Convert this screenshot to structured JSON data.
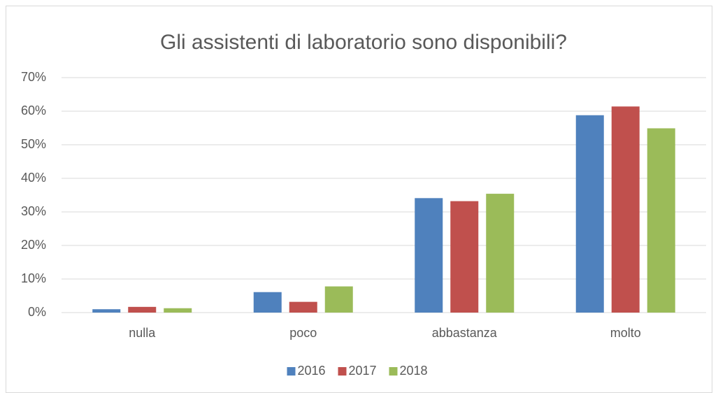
{
  "chart_data": {
    "type": "bar",
    "title": "Gli assistenti di laboratorio sono disponibili?",
    "categories": [
      "nulla",
      "poco",
      "abbastanza",
      "molto"
    ],
    "series": [
      {
        "name": "2016",
        "color": "#4f81bd",
        "values": [
          1.0,
          6.1,
          34.1,
          58.8
        ]
      },
      {
        "name": "2017",
        "color": "#c0504d",
        "values": [
          1.7,
          3.2,
          33.2,
          61.4
        ]
      },
      {
        "name": "2018",
        "color": "#9bbb59",
        "values": [
          1.3,
          7.8,
          35.4,
          54.9
        ]
      }
    ],
    "ylim": [
      0,
      70
    ],
    "yticks": [
      {
        "value": 0,
        "label": "0%"
      },
      {
        "value": 10,
        "label": "10%"
      },
      {
        "value": 20,
        "label": "20%"
      },
      {
        "value": 30,
        "label": "30%"
      },
      {
        "value": 40,
        "label": "40%"
      },
      {
        "value": 50,
        "label": "50%"
      },
      {
        "value": 60,
        "label": "60%"
      },
      {
        "value": 70,
        "label": "70%"
      }
    ],
    "grid": true,
    "legend": "bottom"
  }
}
